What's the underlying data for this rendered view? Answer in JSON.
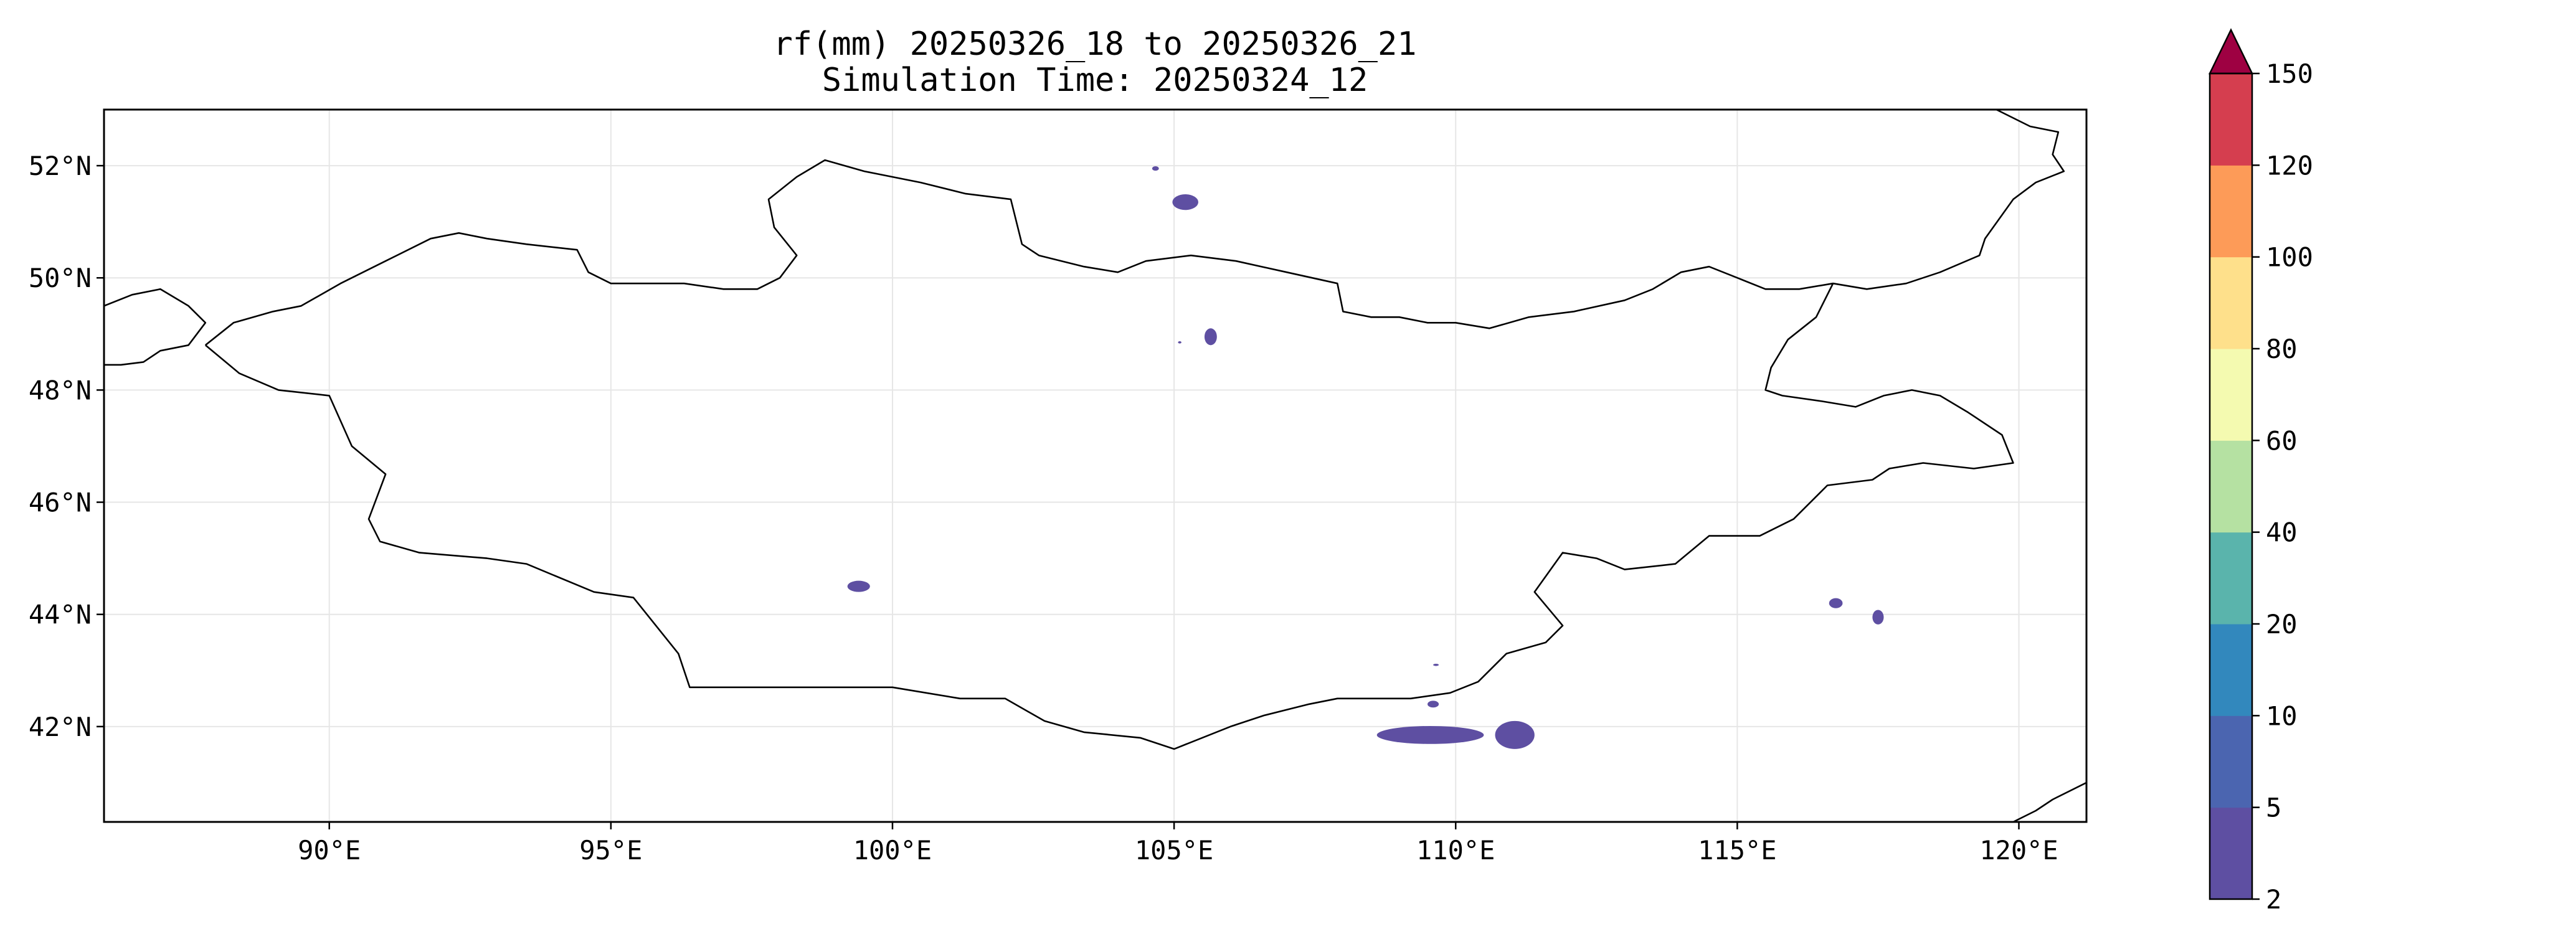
{
  "title": {
    "line1": "rf(mm) 20250326_18 to 20250326_21",
    "line2": "Simulation Time: 20250324_12"
  },
  "map": {
    "lon_range": [
      86.0,
      121.2
    ],
    "lat_range": [
      40.3,
      53.0
    ],
    "grid": true,
    "lon_ticks": [
      {
        "value": 90,
        "label": "90°E"
      },
      {
        "value": 95,
        "label": "95°E"
      },
      {
        "value": 100,
        "label": "100°E"
      },
      {
        "value": 105,
        "label": "105°E"
      },
      {
        "value": 110,
        "label": "110°E"
      },
      {
        "value": 115,
        "label": "115°E"
      },
      {
        "value": 120,
        "label": "120°E"
      }
    ],
    "lat_ticks": [
      {
        "value": 42,
        "label": "42°N"
      },
      {
        "value": 44,
        "label": "44°N"
      },
      {
        "value": 46,
        "label": "46°N"
      },
      {
        "value": 48,
        "label": "48°N"
      },
      {
        "value": 50,
        "label": "50°N"
      },
      {
        "value": 52,
        "label": "52°N"
      }
    ],
    "mongolia_border": [
      [
        87.8,
        48.8
      ],
      [
        88.3,
        49.2
      ],
      [
        89.0,
        49.4
      ],
      [
        89.5,
        49.5
      ],
      [
        90.2,
        49.9
      ],
      [
        91.0,
        50.3
      ],
      [
        91.8,
        50.7
      ],
      [
        92.3,
        50.8
      ],
      [
        92.8,
        50.7
      ],
      [
        93.5,
        50.6
      ],
      [
        94.4,
        50.5
      ],
      [
        94.6,
        50.1
      ],
      [
        95.0,
        49.9
      ],
      [
        95.8,
        49.9
      ],
      [
        96.3,
        49.9
      ],
      [
        97.0,
        49.8
      ],
      [
        97.6,
        49.8
      ],
      [
        98.0,
        50.0
      ],
      [
        98.3,
        50.4
      ],
      [
        97.9,
        50.9
      ],
      [
        97.8,
        51.4
      ],
      [
        98.3,
        51.8
      ],
      [
        98.8,
        52.1
      ],
      [
        99.5,
        51.9
      ],
      [
        100.5,
        51.7
      ],
      [
        101.3,
        51.5
      ],
      [
        102.1,
        51.4
      ],
      [
        102.3,
        50.6
      ],
      [
        102.6,
        50.4
      ],
      [
        103.4,
        50.2
      ],
      [
        104.0,
        50.1
      ],
      [
        104.5,
        50.3
      ],
      [
        105.3,
        50.4
      ],
      [
        106.1,
        50.3
      ],
      [
        107.0,
        50.1
      ],
      [
        107.9,
        49.9
      ],
      [
        108.0,
        49.4
      ],
      [
        108.5,
        49.3
      ],
      [
        109.0,
        49.3
      ],
      [
        109.5,
        49.2
      ],
      [
        110.0,
        49.2
      ],
      [
        110.6,
        49.1
      ],
      [
        111.3,
        49.3
      ],
      [
        112.1,
        49.4
      ],
      [
        113.0,
        49.6
      ],
      [
        113.5,
        49.8
      ],
      [
        114.0,
        50.1
      ],
      [
        114.5,
        50.2
      ],
      [
        115.0,
        50.0
      ],
      [
        115.5,
        49.8
      ],
      [
        116.1,
        49.8
      ],
      [
        116.7,
        49.9
      ],
      [
        116.4,
        49.3
      ],
      [
        115.9,
        48.9
      ],
      [
        115.6,
        48.4
      ],
      [
        115.5,
        48.0
      ],
      [
        115.8,
        47.9
      ],
      [
        116.5,
        47.8
      ],
      [
        117.1,
        47.7
      ],
      [
        117.6,
        47.9
      ],
      [
        118.1,
        48.0
      ],
      [
        118.6,
        47.9
      ],
      [
        119.1,
        47.6
      ],
      [
        119.7,
        47.2
      ],
      [
        119.9,
        46.7
      ],
      [
        119.2,
        46.6
      ],
      [
        118.3,
        46.7
      ],
      [
        117.7,
        46.6
      ],
      [
        117.4,
        46.4
      ],
      [
        116.6,
        46.3
      ],
      [
        116.0,
        45.7
      ],
      [
        115.4,
        45.4
      ],
      [
        114.5,
        45.4
      ],
      [
        113.9,
        44.9
      ],
      [
        113.0,
        44.8
      ],
      [
        112.5,
        45.0
      ],
      [
        111.9,
        45.1
      ],
      [
        111.4,
        44.4
      ],
      [
        111.9,
        43.8
      ],
      [
        111.6,
        43.5
      ],
      [
        110.9,
        43.3
      ],
      [
        110.4,
        42.8
      ],
      [
        109.9,
        42.6
      ],
      [
        109.2,
        42.5
      ],
      [
        107.9,
        42.5
      ],
      [
        107.4,
        42.4
      ],
      [
        106.6,
        42.2
      ],
      [
        106.0,
        42.0
      ],
      [
        105.0,
        41.6
      ],
      [
        104.4,
        41.8
      ],
      [
        103.4,
        41.9
      ],
      [
        102.7,
        42.1
      ],
      [
        102.0,
        42.5
      ],
      [
        101.2,
        42.5
      ],
      [
        100.0,
        42.7
      ],
      [
        98.0,
        42.7
      ],
      [
        96.4,
        42.7
      ],
      [
        96.2,
        43.3
      ],
      [
        95.4,
        44.3
      ],
      [
        94.7,
        44.4
      ],
      [
        93.5,
        44.9
      ],
      [
        92.8,
        45.0
      ],
      [
        91.6,
        45.1
      ],
      [
        90.9,
        45.3
      ],
      [
        90.7,
        45.7
      ],
      [
        91.0,
        46.5
      ],
      [
        90.4,
        47.0
      ],
      [
        90.0,
        47.9
      ],
      [
        89.1,
        48.0
      ],
      [
        88.4,
        48.3
      ],
      [
        87.8,
        48.8
      ]
    ],
    "china_nw_coast": [
      [
        86.0,
        49.5
      ],
      [
        86.5,
        49.7
      ],
      [
        87.0,
        49.8
      ],
      [
        87.5,
        49.5
      ],
      [
        87.8,
        49.2
      ],
      [
        87.5,
        48.8
      ],
      [
        87.0,
        48.7
      ],
      [
        86.7,
        48.5
      ],
      [
        86.3,
        48.45
      ],
      [
        86.0,
        48.45
      ]
    ],
    "russia_ne_coast": [
      [
        119.6,
        53.0
      ],
      [
        120.2,
        52.7
      ],
      [
        120.7,
        52.6
      ],
      [
        120.6,
        52.2
      ],
      [
        120.8,
        51.9
      ],
      [
        120.3,
        51.7
      ],
      [
        119.9,
        51.4
      ],
      [
        119.4,
        50.7
      ],
      [
        119.3,
        50.4
      ],
      [
        118.6,
        50.1
      ],
      [
        118.0,
        49.9
      ],
      [
        117.3,
        49.8
      ],
      [
        116.7,
        49.9
      ]
    ],
    "se_corner_coast": [
      [
        119.9,
        40.3
      ],
      [
        120.3,
        40.5
      ],
      [
        120.6,
        40.7
      ],
      [
        121.2,
        41.0
      ]
    ],
    "rain_patches": [
      {
        "lon": 105.2,
        "lat": 51.35,
        "rlon": 0.23,
        "rlat": 0.14
      },
      {
        "lon": 104.67,
        "lat": 51.95,
        "rlon": 0.06,
        "rlat": 0.04
      },
      {
        "lon": 105.65,
        "lat": 48.95,
        "rlon": 0.11,
        "rlat": 0.15
      },
      {
        "lon": 105.1,
        "lat": 48.85,
        "rlon": 0.03,
        "rlat": 0.02
      },
      {
        "lon": 99.4,
        "lat": 44.5,
        "rlon": 0.2,
        "rlat": 0.1
      },
      {
        "lon": 109.55,
        "lat": 41.85,
        "rlon": 0.95,
        "rlat": 0.16
      },
      {
        "lon": 111.05,
        "lat": 41.85,
        "rlon": 0.35,
        "rlat": 0.25
      },
      {
        "lon": 109.6,
        "lat": 42.4,
        "rlon": 0.1,
        "rlat": 0.06
      },
      {
        "lon": 109.65,
        "lat": 43.1,
        "rlon": 0.05,
        "rlat": 0.02
      },
      {
        "lon": 116.75,
        "lat": 44.2,
        "rlon": 0.12,
        "rlat": 0.09
      },
      {
        "lon": 117.5,
        "lat": 43.95,
        "rlon": 0.1,
        "rlat": 0.13
      }
    ],
    "rain_color": "#5e4fa2"
  },
  "colorbar": {
    "ticks": [
      "2",
      "5",
      "10",
      "20",
      "40",
      "60",
      "80",
      "100",
      "120",
      "150"
    ],
    "colors": [
      "#5e4fa2",
      "#4b65b0",
      "#3288bd",
      "#5ab4ac",
      "#b5e1a2",
      "#f4fab0",
      "#fee08b",
      "#fd9b58",
      "#d53e4f"
    ],
    "extend_color": "#9e0142"
  }
}
